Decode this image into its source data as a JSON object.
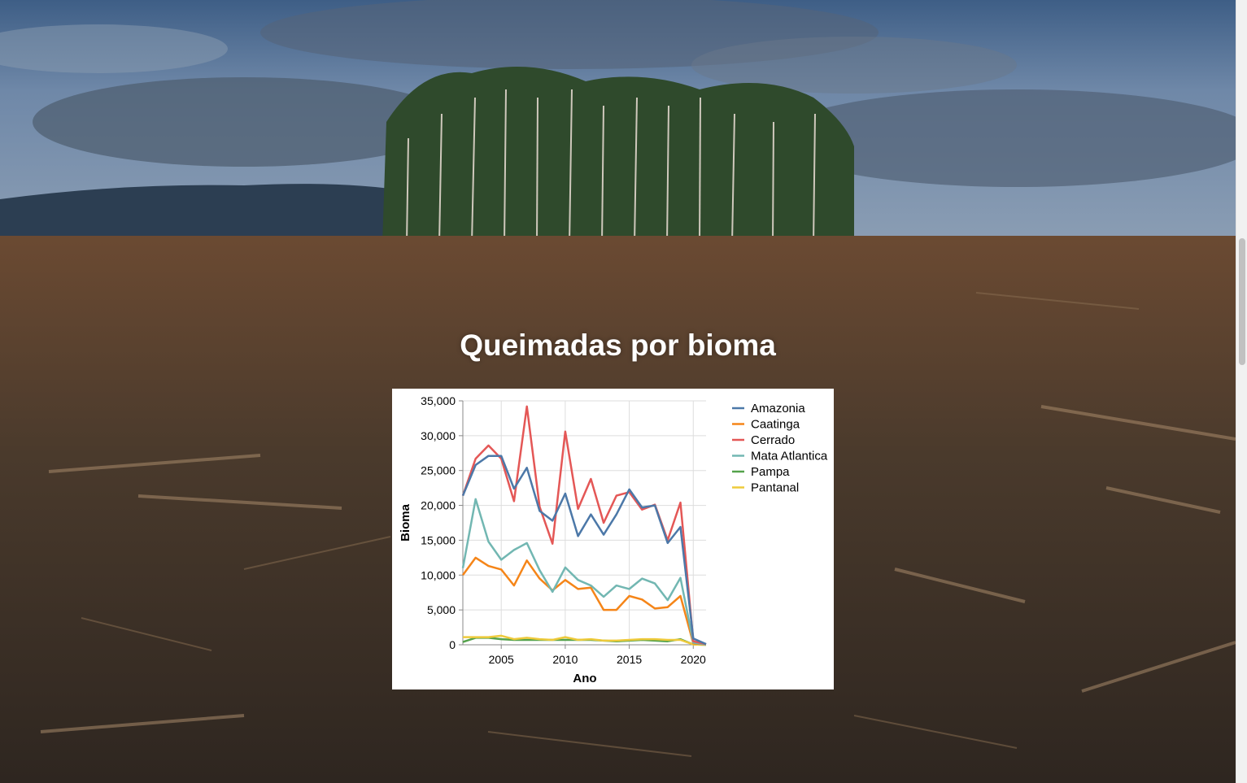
{
  "page": {
    "title": "Queimadas por bioma",
    "background_image": "deforested-landscape-photo"
  },
  "chart_data": {
    "type": "line",
    "xlabel": "Ano",
    "ylabel": "Bioma",
    "xlim": [
      2002,
      2021
    ],
    "ylim": [
      0,
      35000
    ],
    "x_ticks": [
      2005,
      2010,
      2015,
      2020
    ],
    "y_ticks": [
      "0",
      "5,000",
      "10,000",
      "15,000",
      "20,000",
      "25,000",
      "30,000",
      "35,000"
    ],
    "grid": true,
    "legend_position": "right",
    "x": [
      2002,
      2003,
      2004,
      2005,
      2006,
      2007,
      2008,
      2009,
      2010,
      2011,
      2012,
      2013,
      2014,
      2015,
      2016,
      2017,
      2018,
      2019,
      2020,
      2021
    ],
    "series": [
      {
        "name": "Amazonia",
        "color": "#4c78a8",
        "values": [
          21400,
          25800,
          27100,
          27100,
          22400,
          25400,
          19200,
          17800,
          21700,
          15600,
          18700,
          15800,
          18700,
          22300,
          19700,
          20000,
          14600,
          16900,
          900,
          100
        ]
      },
      {
        "name": "Caatinga",
        "color": "#f58518",
        "values": [
          10000,
          12500,
          11300,
          10800,
          8500,
          12100,
          9500,
          7800,
          9300,
          8000,
          8200,
          5000,
          5000,
          7000,
          6500,
          5200,
          5400,
          7000,
          200,
          50
        ]
      },
      {
        "name": "Cerrado",
        "color": "#e45756",
        "values": [
          21400,
          26700,
          28600,
          26700,
          20600,
          34200,
          19800,
          14500,
          30600,
          19500,
          23800,
          17500,
          21400,
          21900,
          19400,
          20100,
          15000,
          20400,
          500,
          100
        ]
      },
      {
        "name": "Mata Atlantica",
        "color": "#72b7b2",
        "values": [
          11000,
          20900,
          14800,
          12200,
          13600,
          14600,
          10700,
          7600,
          11100,
          9300,
          8500,
          6900,
          8500,
          8000,
          9500,
          8800,
          6400,
          9600,
          300,
          50
        ]
      },
      {
        "name": "Pampa",
        "color": "#54a24b",
        "values": [
          400,
          1000,
          1000,
          800,
          700,
          700,
          700,
          700,
          700,
          700,
          700,
          600,
          500,
          600,
          700,
          600,
          500,
          800,
          50,
          0
        ]
      },
      {
        "name": "Pantanal",
        "color": "#eeca3b",
        "values": [
          1100,
          1100,
          1100,
          1300,
          800,
          1000,
          800,
          700,
          1100,
          700,
          800,
          600,
          600,
          700,
          800,
          800,
          700,
          700,
          50,
          0
        ]
      }
    ]
  }
}
